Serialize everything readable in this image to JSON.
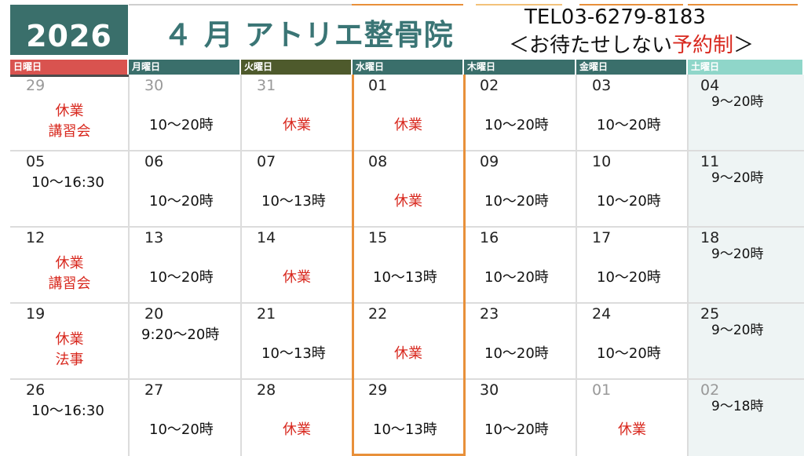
{
  "header": {
    "year": "2026",
    "month_title": "４ 月 アトリエ整骨院",
    "tel": "TEL03-6279-8183",
    "tagline_pre": "＜お待たせしない",
    "tagline_red": "予約制",
    "tagline_post": "＞"
  },
  "weekdays": [
    {
      "label": "日曜日",
      "color": "#d9534f"
    },
    {
      "label": "月曜日",
      "color": "#3a6f6b"
    },
    {
      "label": "火曜日",
      "color": "#4e5a2c"
    },
    {
      "label": "水曜日",
      "color": "#3a6f6b"
    },
    {
      "label": "木曜日",
      "color": "#3a6f6b"
    },
    {
      "label": "金曜日",
      "color": "#3a6f6b"
    },
    {
      "label": "土曜日",
      "color": "#8fd6c9"
    }
  ],
  "weeks": [
    [
      {
        "date": "29",
        "grey": true,
        "closed": "休業",
        "closed2": "講習会"
      },
      {
        "date": "30",
        "grey": true,
        "hours": "10～20時"
      },
      {
        "date": "31",
        "grey": true,
        "closed": "休業"
      },
      {
        "date": "01",
        "closed": "休業"
      },
      {
        "date": "02",
        "hours": "10～20時"
      },
      {
        "date": "03",
        "hours": "10～20時"
      },
      {
        "date": "04",
        "hours_top": "9～20時"
      }
    ],
    [
      {
        "date": "05",
        "hours_top": "10～16:30"
      },
      {
        "date": "06",
        "hours": "10～20時"
      },
      {
        "date": "07",
        "hours": "10～13時"
      },
      {
        "date": "08",
        "closed": "休業"
      },
      {
        "date": "09",
        "hours": "10～20時"
      },
      {
        "date": "10",
        "hours": "10～20時"
      },
      {
        "date": "11",
        "hours_top": "9～20時"
      }
    ],
    [
      {
        "date": "12",
        "closed": "休業",
        "closed2": "講習会"
      },
      {
        "date": "13",
        "hours": "10～20時"
      },
      {
        "date": "14",
        "closed": "休業"
      },
      {
        "date": "15",
        "hours": "10～13時"
      },
      {
        "date": "16",
        "hours": "10～20時"
      },
      {
        "date": "17",
        "hours": "10～20時"
      },
      {
        "date": "18",
        "hours_top": "9～20時"
      }
    ],
    [
      {
        "date": "19",
        "closed": "休業",
        "closed2": "法事"
      },
      {
        "date": "20",
        "hours_top": "9:20～20時"
      },
      {
        "date": "21",
        "hours": "10～13時"
      },
      {
        "date": "22",
        "closed": "休業"
      },
      {
        "date": "23",
        "hours": "10～20時"
      },
      {
        "date": "24",
        "hours": "10～20時"
      },
      {
        "date": "25",
        "hours_top": "9～20時"
      }
    ],
    [
      {
        "date": "26",
        "hours_top": "10～16:30"
      },
      {
        "date": "27",
        "hours": "10～20時"
      },
      {
        "date": "28",
        "closed": "休業"
      },
      {
        "date": "29",
        "hours": "10～13時"
      },
      {
        "date": "30",
        "hours": "10～20時"
      },
      {
        "date": "01",
        "grey": true,
        "closed": "休業"
      },
      {
        "date": "02",
        "grey": true,
        "hours_top": "9～18時"
      }
    ]
  ]
}
